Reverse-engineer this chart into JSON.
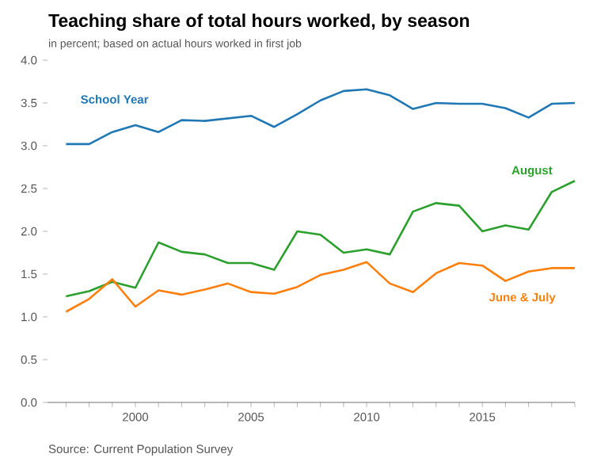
{
  "chart_data": {
    "type": "line",
    "title": "Teaching share of total hours worked, by season",
    "subtitle": "in percent; based on actual hours worked in first job",
    "annotations": [
      "Source: Current Population Survey"
    ],
    "x": [
      1997,
      1998,
      1999,
      2000,
      2001,
      2002,
      2003,
      2004,
      2005,
      2006,
      2007,
      2008,
      2009,
      2010,
      2011,
      2012,
      2013,
      2014,
      2015,
      2016,
      2017,
      2018,
      2019
    ],
    "series": [
      {
        "name": "School Year",
        "color": "#1f77b4",
        "values": [
          3.02,
          3.02,
          3.16,
          3.24,
          3.16,
          3.3,
          3.29,
          3.32,
          3.35,
          3.22,
          3.37,
          3.53,
          3.64,
          3.66,
          3.59,
          3.43,
          3.5,
          3.49,
          3.49,
          3.44,
          3.33,
          3.49,
          3.5
        ]
      },
      {
        "name": "August",
        "color": "#2ca02c",
        "values": [
          1.24,
          1.3,
          1.41,
          1.34,
          1.87,
          1.76,
          1.73,
          1.63,
          1.63,
          1.55,
          2.0,
          1.96,
          1.75,
          1.79,
          1.73,
          2.23,
          2.33,
          2.3,
          2.0,
          2.07,
          2.02,
          2.46,
          2.59
        ]
      },
      {
        "name": "June & July",
        "color": "#ff7f0e",
        "values": [
          1.06,
          1.21,
          1.44,
          1.12,
          1.31,
          1.26,
          1.32,
          1.39,
          1.29,
          1.27,
          1.35,
          1.49,
          1.55,
          1.64,
          1.39,
          1.29,
          1.51,
          1.63,
          1.6,
          1.42,
          1.53,
          1.57,
          1.57
        ]
      }
    ],
    "xlim": [
      1996.2,
      2019
    ],
    "ylim": [
      0,
      4
    ],
    "xticks": [
      {
        "value": 1997,
        "label": null
      },
      {
        "value": 1998,
        "label": null
      },
      {
        "value": 1999,
        "label": null
      },
      2000,
      {
        "value": 2001,
        "label": null
      },
      {
        "value": 2002,
        "label": null
      },
      {
        "value": 2003,
        "label": null
      },
      {
        "value": 2004,
        "label": null
      },
      2005,
      {
        "value": 2006,
        "label": null
      },
      {
        "value": 2007,
        "label": null
      },
      {
        "value": 2008,
        "label": null
      },
      {
        "value": 2009,
        "label": null
      },
      2010,
      {
        "value": 2011,
        "label": null
      },
      {
        "value": 2012,
        "label": null
      },
      {
        "value": 2013,
        "label": null
      },
      {
        "value": 2014,
        "label": null
      },
      2015,
      {
        "value": 2016,
        "label": null
      },
      {
        "value": 2017,
        "label": null
      },
      {
        "value": 2018,
        "label": null
      },
      {
        "value": 2019,
        "label": null
      }
    ],
    "yticks": [
      {
        "value": 0,
        "label": "0.0"
      },
      {
        "value": 0.5,
        "label": "0.5"
      },
      {
        "value": 1,
        "label": "1.0"
      },
      {
        "value": 1.5,
        "label": "1.5"
      },
      {
        "value": 2,
        "label": "2.0"
      },
      {
        "value": 2.5,
        "label": "2.5"
      },
      {
        "value": 3,
        "label": "3.0"
      },
      {
        "value": 3.5,
        "label": "3.5"
      },
      {
        "value": 4,
        "label": "4.0"
      }
    ],
    "grid": false,
    "legend": false,
    "marker": "none",
    "line_style": "solid"
  }
}
